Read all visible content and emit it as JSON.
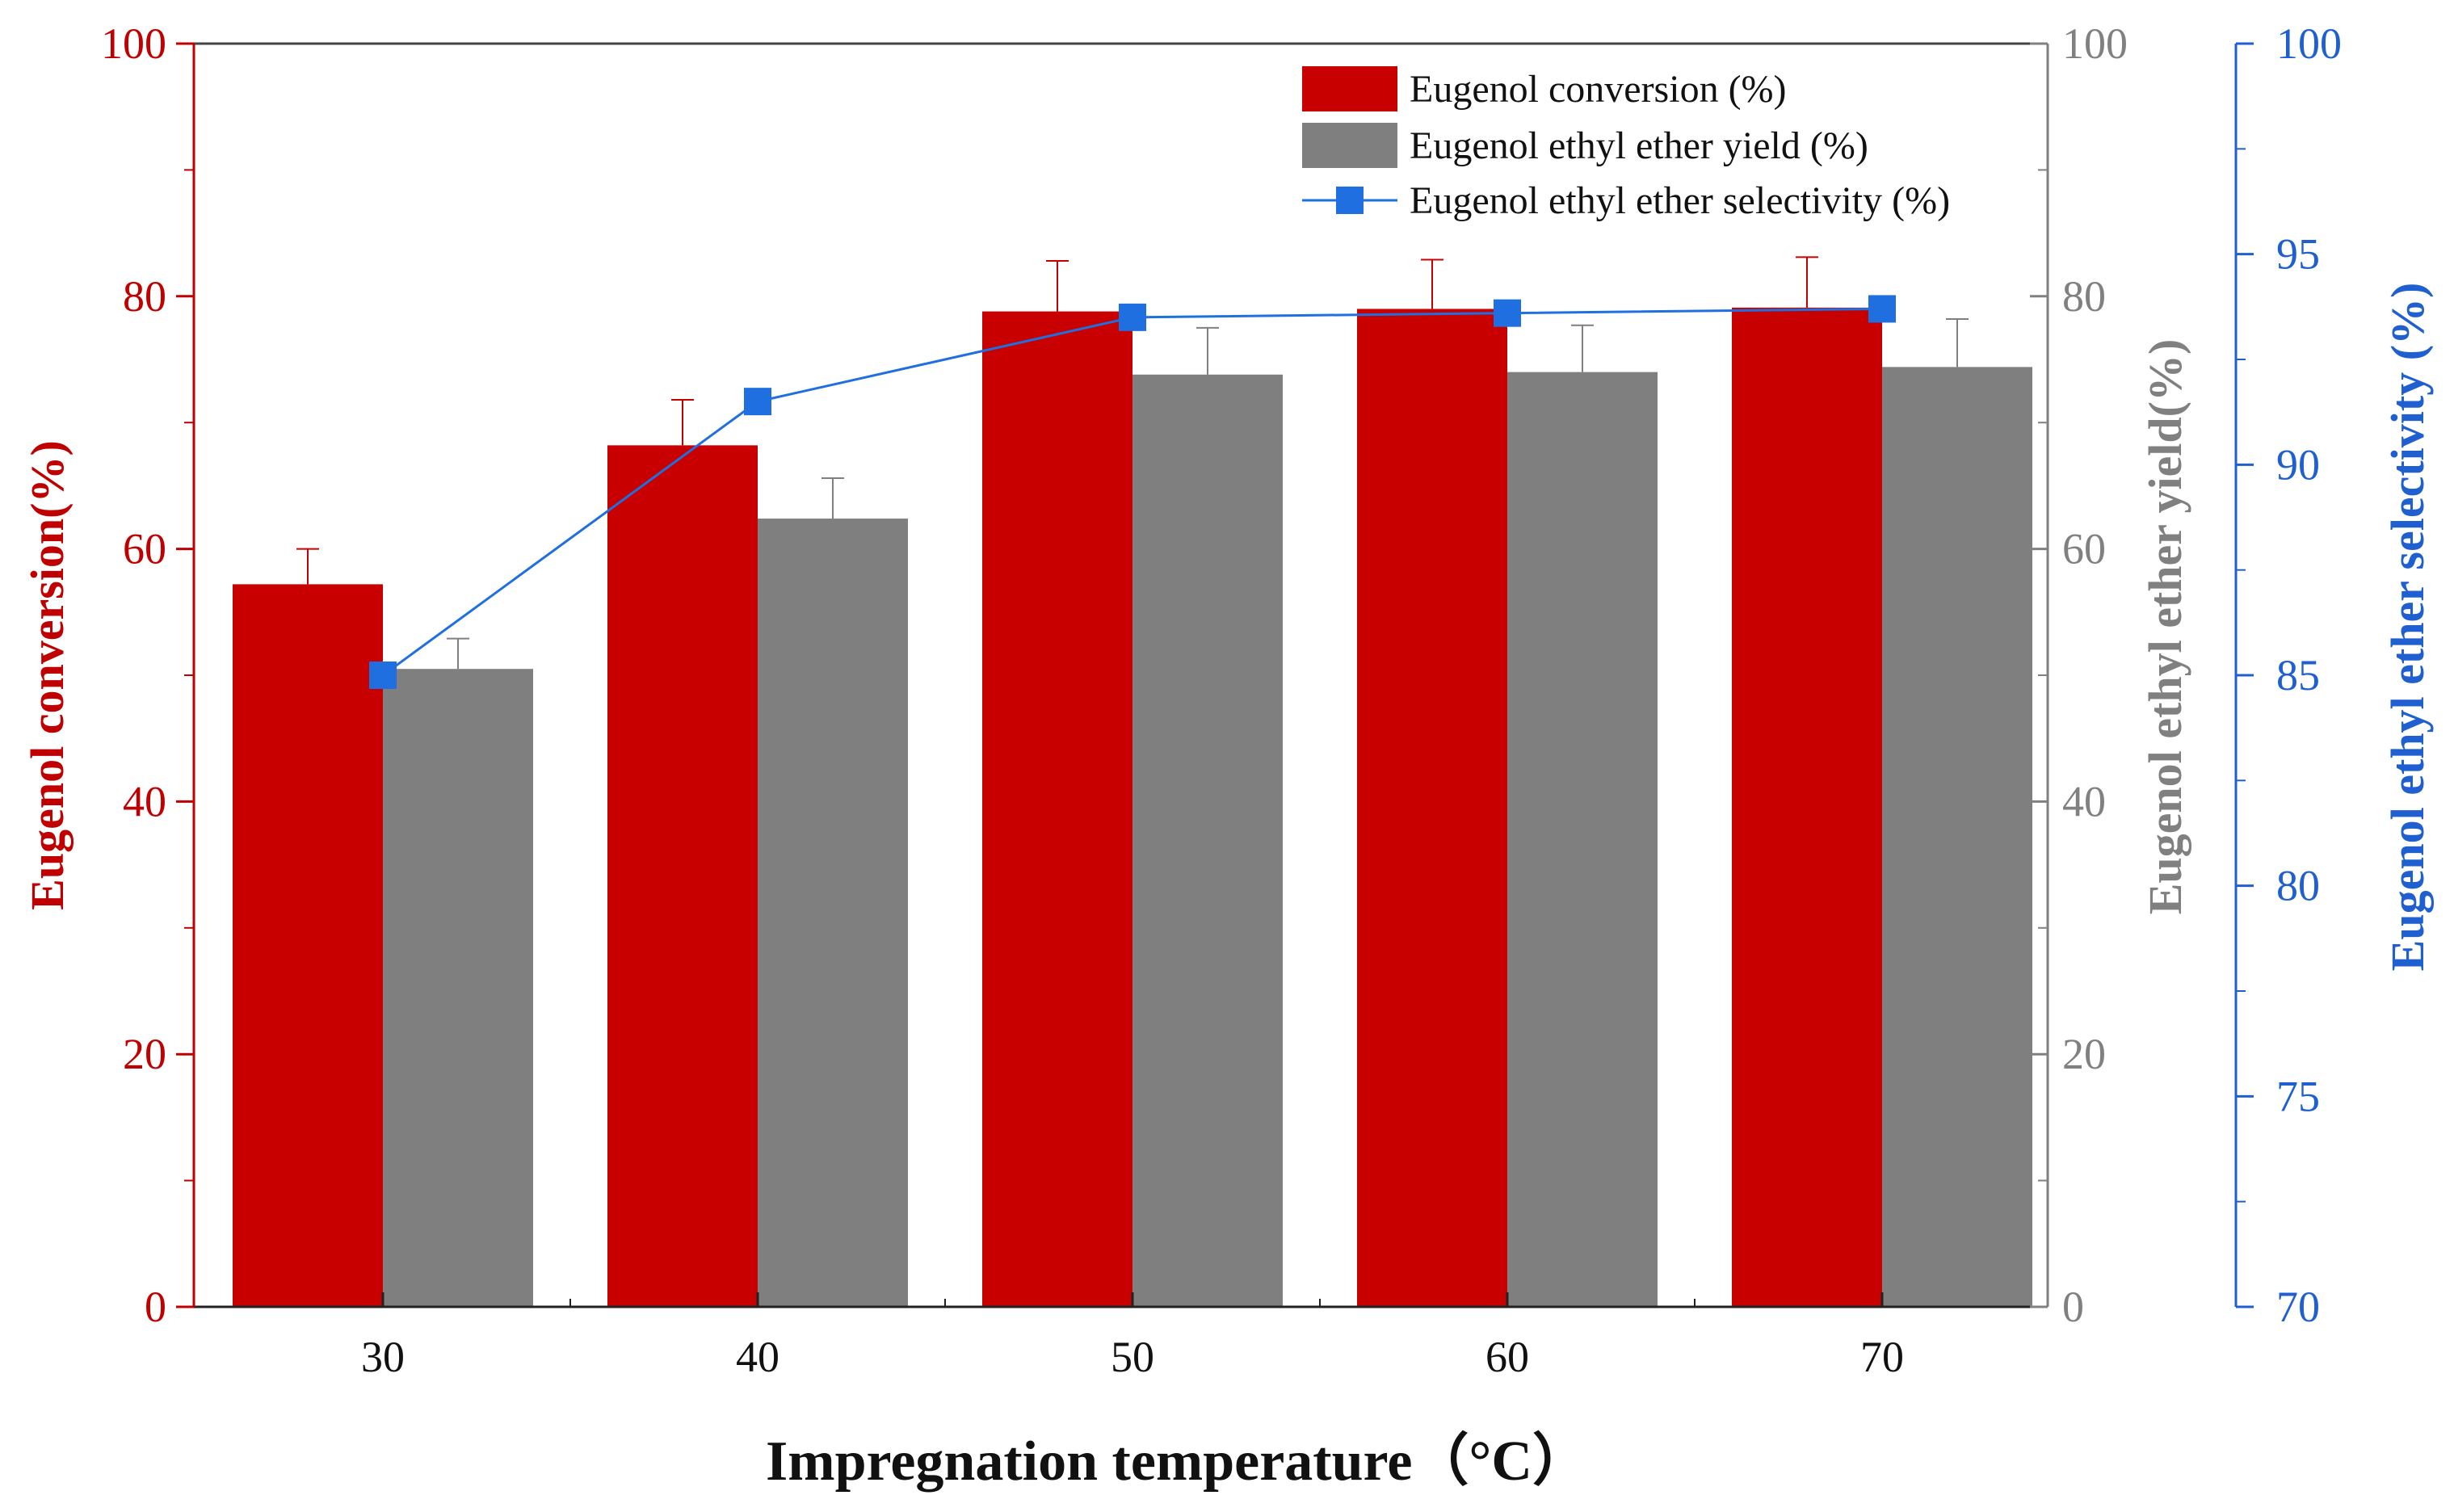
{
  "chart_data": {
    "type": "bar+line",
    "title": "",
    "categories": [
      "30",
      "40",
      "50",
      "60",
      "70"
    ],
    "xlabel": "Impregnation temperature（°C）",
    "axes": {
      "left": {
        "label": "Eugenol conversion(%)",
        "ylim": [
          0,
          100
        ],
        "ticks": [
          "0",
          "20",
          "40",
          "60",
          "80",
          "100"
        ],
        "color": "#c00000"
      },
      "right1": {
        "label": "Eugenol ethyl ether yield(%)",
        "ylim": [
          0,
          100
        ],
        "ticks": [
          "0",
          "20",
          "40",
          "60",
          "80",
          "100"
        ],
        "color": "#808080"
      },
      "right2": {
        "label": "Eugenol ethyl ether selectivity (%)",
        "ylim": [
          70,
          100
        ],
        "ticks": [
          "70",
          "75",
          "80",
          "85",
          "90",
          "95",
          "100"
        ],
        "color": "#1f5fd0"
      }
    },
    "series": [
      {
        "name": "Eugenol conversion (%)",
        "type": "bar",
        "axis": "left",
        "color": "#c80000",
        "values": [
          57.2,
          68.2,
          78.8,
          79.0,
          79.1
        ],
        "errors": [
          2.8,
          3.6,
          4.0,
          3.9,
          4.0
        ]
      },
      {
        "name": "Eugenol ethyl ether yield (%)",
        "type": "bar",
        "axis": "right1",
        "color": "#7f7f7f",
        "values": [
          50.5,
          62.4,
          73.8,
          74.0,
          74.4
        ],
        "errors": [
          2.4,
          3.2,
          3.7,
          3.7,
          3.8
        ]
      },
      {
        "name": "Eugenol ethyl ether selectivity (%)",
        "type": "line",
        "axis": "right2",
        "color": "#1f6fe0",
        "marker": "square",
        "values": [
          85.0,
          91.5,
          93.5,
          93.6,
          93.7
        ]
      }
    ],
    "legend": "top-right",
    "grid": false
  }
}
